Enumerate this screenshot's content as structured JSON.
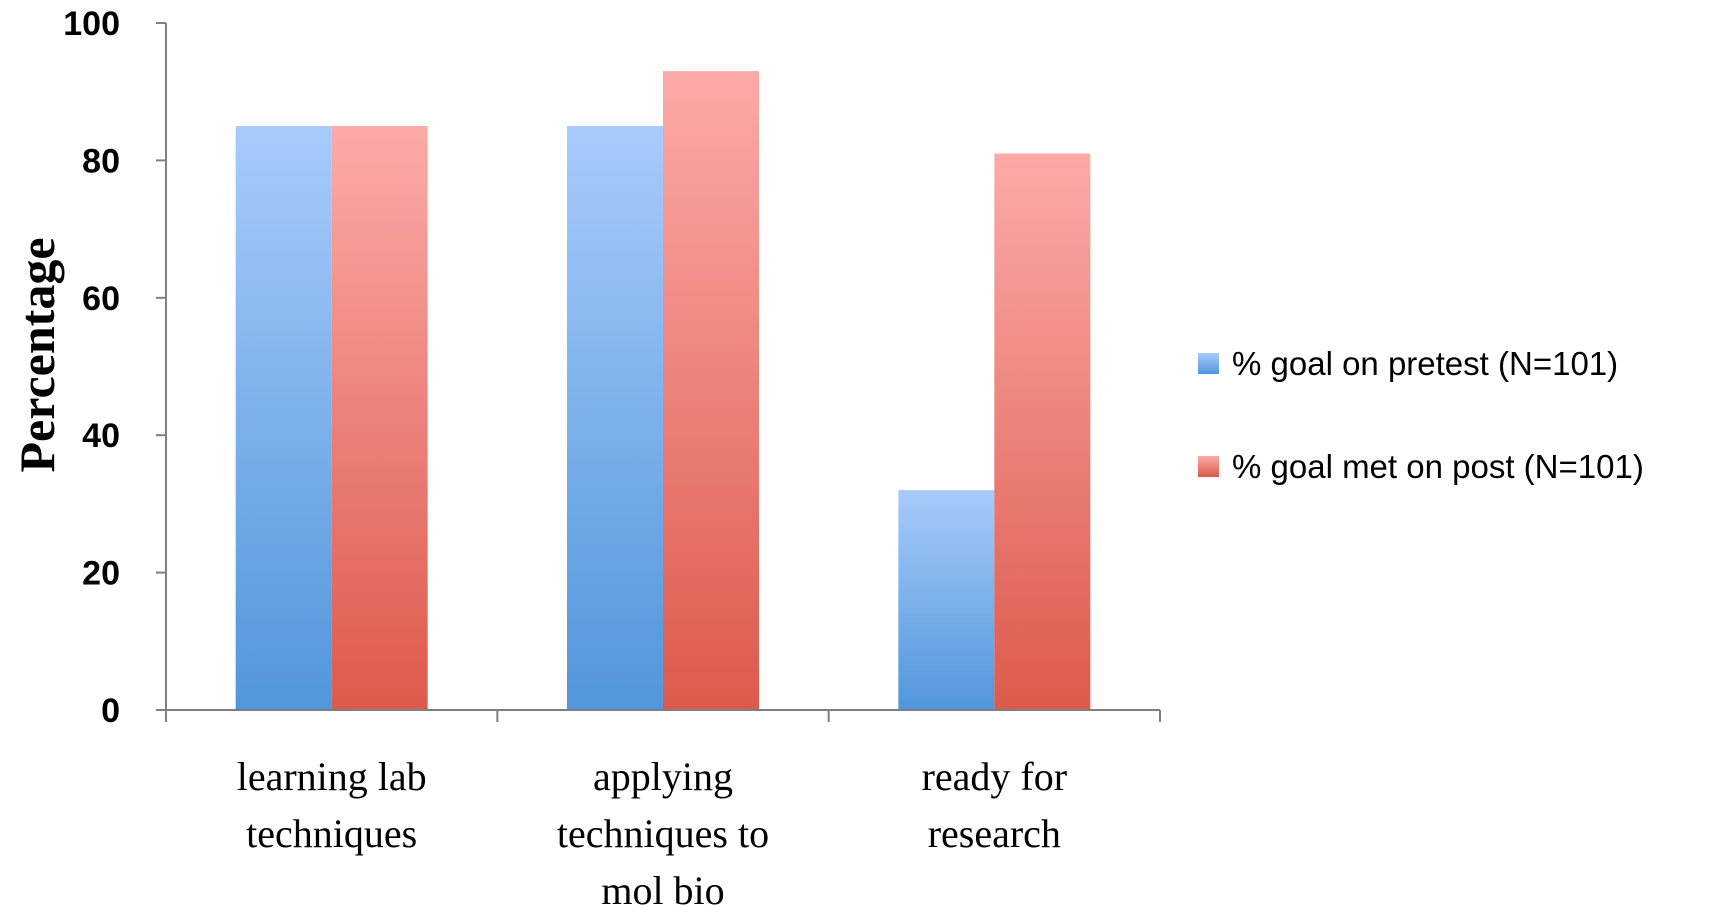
{
  "chart_data": {
    "type": "bar",
    "title": "",
    "xlabel": "",
    "ylabel": "Percentage",
    "ylim": [
      0,
      100
    ],
    "yticks": [
      0,
      20,
      40,
      60,
      80,
      100
    ],
    "categories": [
      [
        "learning lab",
        "techniques"
      ],
      [
        "applying",
        "techniques to",
        "mol bio"
      ],
      [
        "ready for",
        "research"
      ]
    ],
    "series": [
      {
        "name": "% goal on pretest (N=101)",
        "values": [
          85,
          85,
          32
        ],
        "color_top": "#a8cbfb",
        "color_bottom": "#5196db"
      },
      {
        "name": "% goal met on post (N=101)",
        "values": [
          85,
          93,
          81
        ],
        "color_top": "#fcaaa8",
        "color_bottom": "#dc5a4c"
      }
    ],
    "grid": false,
    "legend_position": "right",
    "axis_color": "#7f7f7f"
  }
}
